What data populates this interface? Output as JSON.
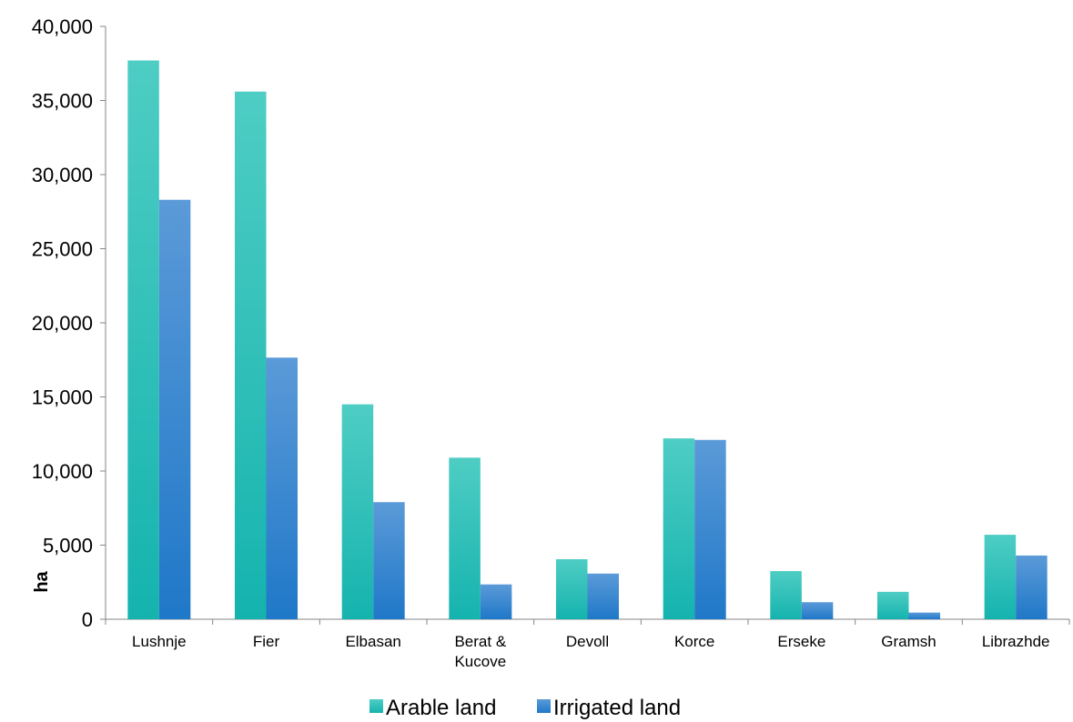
{
  "chart_data": {
    "type": "bar",
    "categories": [
      "Lushnje",
      "Fier",
      "Elbasan",
      "Berat &\nKucove",
      "Devoll",
      "Korce",
      "Erseke",
      "Gramsh",
      "Librazhde"
    ],
    "series": [
      {
        "name": "Arable land",
        "values": [
          37700,
          35600,
          14500,
          10900,
          4050,
          12200,
          3250,
          1850,
          5700
        ]
      },
      {
        "name": "Irrigated land",
        "values": [
          28300,
          17650,
          7900,
          2350,
          3080,
          12100,
          1150,
          450,
          4300
        ]
      }
    ],
    "ylabel": "ha",
    "ylim": [
      0,
      40000
    ],
    "yticks": [
      "0",
      "5,000",
      "10,000",
      "15,000",
      "20,000",
      "25,000",
      "30,000",
      "35,000",
      "40,000"
    ],
    "ytick_values": [
      0,
      5000,
      10000,
      15000,
      20000,
      25000,
      30000,
      35000,
      40000
    ],
    "grid": false,
    "legend_position": "bottom",
    "colors": {
      "arable_top": "#4ecdc4",
      "arable_bottom": "#15b3ae",
      "irrigated_top": "#5b9ad8",
      "irrigated_bottom": "#1f78c8",
      "axis": "#868686"
    }
  }
}
